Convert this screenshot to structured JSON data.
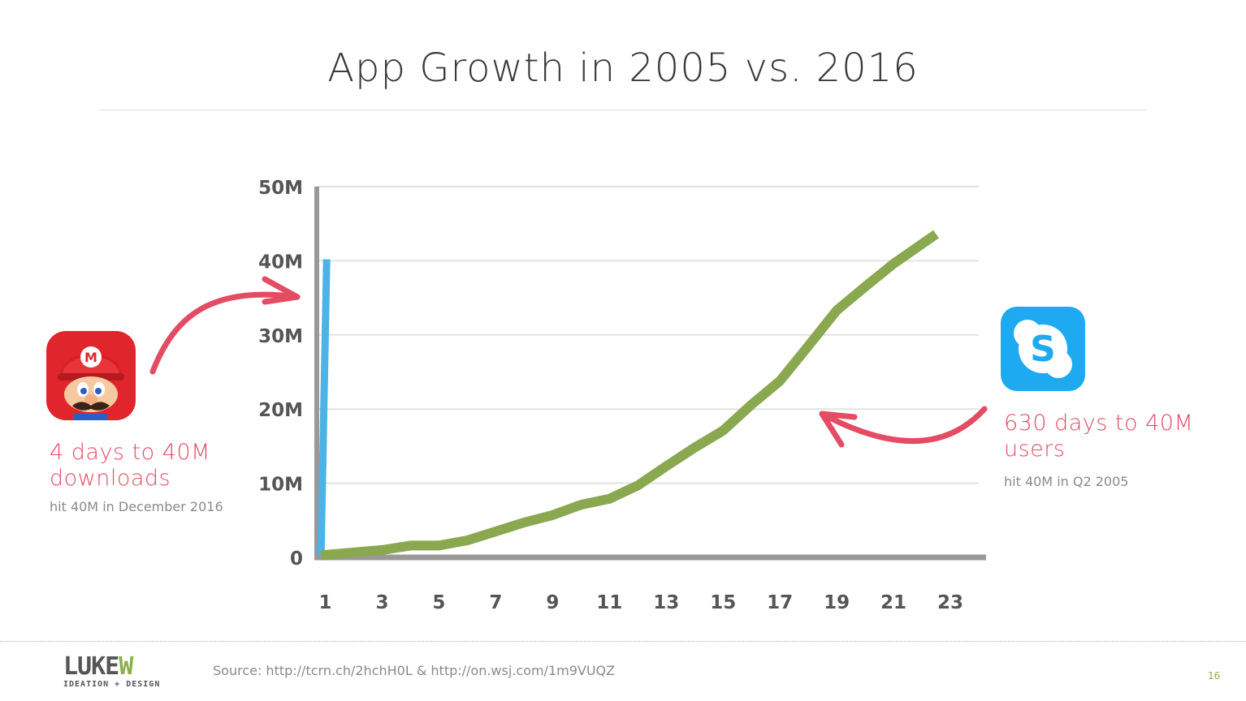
{
  "slide": {
    "title": "App Growth in 2005 vs. 2016",
    "page_number": "16",
    "source": "Source: http://tcrn.ch/2hchH0L  &   http://on.wsj.com/1m9VUQZ",
    "logo": {
      "main_prefix": "LUKE",
      "main_suffix": "W",
      "sub": "IDEATION + DESIGN"
    }
  },
  "callouts": {
    "mario": {
      "headline_1": "4 days to 40M",
      "headline_2": "downloads",
      "note": "hit 40M in December 2016"
    },
    "skype": {
      "headline_1": "630 days to 40M",
      "headline_2": "users",
      "note": "hit 40M in Q2 2005"
    }
  },
  "colors": {
    "accent": "#e34c63",
    "super_mario_run": "#4db3e6",
    "skype": "#8aa84f",
    "axis": "#999999",
    "grid": "#e3e3e3",
    "brand_green": "#8ab04a",
    "skype_blue": "#1eaaf1"
  },
  "chart_data": {
    "type": "line",
    "title": "App Growth in 2005 vs. 2016",
    "xlabel": "",
    "ylabel": "",
    "xlim": [
      0.7,
      24.2
    ],
    "ylim": [
      0,
      50
    ],
    "x_ticks": [
      1,
      3,
      5,
      7,
      9,
      11,
      13,
      15,
      17,
      19,
      21,
      23
    ],
    "y_ticks": [
      {
        "value": 0,
        "label": "0"
      },
      {
        "value": 10,
        "label": "10M"
      },
      {
        "value": 20,
        "label": "20M"
      },
      {
        "value": 30,
        "label": "30M"
      },
      {
        "value": 40,
        "label": "40M"
      },
      {
        "value": 50,
        "label": "50M"
      }
    ],
    "grid": true,
    "series": [
      {
        "name": "Super Mario Run (2016)",
        "color": "#4db3e6",
        "points": [
          [
            0.85,
            0.3
          ],
          [
            1.05,
            40.2
          ]
        ]
      },
      {
        "name": "Skype (2005)",
        "color": "#8aa84f",
        "points": [
          [
            0.85,
            0.3
          ],
          [
            3,
            1.0
          ],
          [
            4,
            1.6
          ],
          [
            5,
            1.6
          ],
          [
            6,
            2.3
          ],
          [
            7,
            3.5
          ],
          [
            8,
            4.7
          ],
          [
            9,
            5.7
          ],
          [
            10,
            7.1
          ],
          [
            11,
            7.9
          ],
          [
            12,
            9.7
          ],
          [
            13,
            12.3
          ],
          [
            14,
            14.8
          ],
          [
            15,
            17.1
          ],
          [
            16,
            20.6
          ],
          [
            17,
            23.8
          ],
          [
            18,
            28.5
          ],
          [
            19,
            33.3
          ],
          [
            20,
            36.5
          ],
          [
            21,
            39.6
          ],
          [
            22.5,
            43.6
          ]
        ]
      }
    ]
  }
}
